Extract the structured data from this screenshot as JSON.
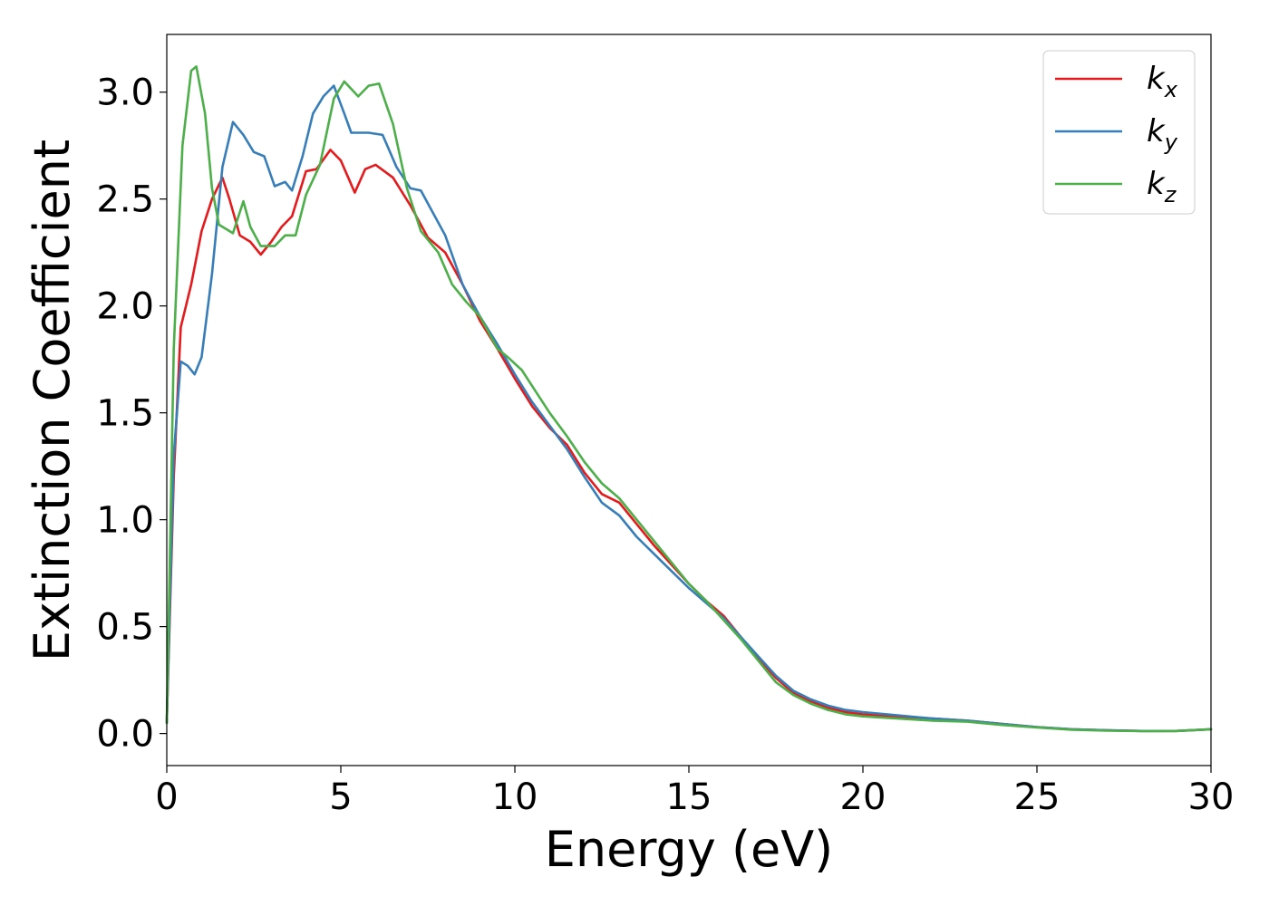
{
  "chart_data": {
    "type": "line",
    "xlabel": "Energy (eV)",
    "ylabel": "Extinction Coefficient",
    "xlim": [
      0,
      30
    ],
    "ylim": [
      -0.15,
      3.27
    ],
    "xticks": [
      "0",
      "5",
      "10",
      "15",
      "20",
      "25",
      "30"
    ],
    "yticks": [
      "0.0",
      "0.5",
      "1.0",
      "1.5",
      "2.0",
      "2.5",
      "3.0"
    ],
    "grid": false,
    "legend_position": "top-right",
    "series": [
      {
        "name": "k_x",
        "label_base": "k",
        "label_sub": "x",
        "color": "#e41a1c",
        "points": [
          [
            0,
            0.05
          ],
          [
            0.2,
            1.2
          ],
          [
            0.4,
            1.9
          ],
          [
            0.7,
            2.1
          ],
          [
            1.0,
            2.35
          ],
          [
            1.3,
            2.5
          ],
          [
            1.6,
            2.6
          ],
          [
            1.8,
            2.5
          ],
          [
            2.1,
            2.33
          ],
          [
            2.4,
            2.3
          ],
          [
            2.7,
            2.24
          ],
          [
            3.0,
            2.3
          ],
          [
            3.3,
            2.37
          ],
          [
            3.6,
            2.42
          ],
          [
            4.0,
            2.63
          ],
          [
            4.3,
            2.64
          ],
          [
            4.7,
            2.73
          ],
          [
            5.0,
            2.68
          ],
          [
            5.4,
            2.53
          ],
          [
            5.7,
            2.64
          ],
          [
            6.0,
            2.66
          ],
          [
            6.5,
            2.6
          ],
          [
            7.0,
            2.47
          ],
          [
            7.5,
            2.32
          ],
          [
            8.0,
            2.25
          ],
          [
            8.5,
            2.1
          ],
          [
            9.0,
            1.93
          ],
          [
            9.5,
            1.8
          ],
          [
            10.0,
            1.66
          ],
          [
            10.5,
            1.53
          ],
          [
            11.0,
            1.43
          ],
          [
            11.5,
            1.35
          ],
          [
            12.0,
            1.22
          ],
          [
            12.5,
            1.12
          ],
          [
            13.0,
            1.08
          ],
          [
            13.5,
            0.98
          ],
          [
            14.0,
            0.88
          ],
          [
            14.5,
            0.79
          ],
          [
            15.0,
            0.7
          ],
          [
            15.5,
            0.62
          ],
          [
            16.0,
            0.55
          ],
          [
            16.5,
            0.45
          ],
          [
            17.0,
            0.35
          ],
          [
            17.5,
            0.26
          ],
          [
            18.0,
            0.19
          ],
          [
            18.5,
            0.15
          ],
          [
            19.0,
            0.12
          ],
          [
            19.5,
            0.1
          ],
          [
            20.0,
            0.09
          ],
          [
            21.0,
            0.08
          ],
          [
            22.0,
            0.07
          ],
          [
            23.0,
            0.06
          ],
          [
            24.0,
            0.045
          ],
          [
            25.0,
            0.03
          ],
          [
            26.0,
            0.02
          ],
          [
            27.0,
            0.015
          ],
          [
            28.0,
            0.012
          ],
          [
            29.0,
            0.012
          ],
          [
            30.0,
            0.02
          ]
        ]
      },
      {
        "name": "k_y",
        "label_base": "k",
        "label_sub": "y",
        "color": "#377eb8",
        "points": [
          [
            0,
            0.05
          ],
          [
            0.2,
            1.3
          ],
          [
            0.4,
            1.74
          ],
          [
            0.6,
            1.72
          ],
          [
            0.8,
            1.68
          ],
          [
            1.0,
            1.76
          ],
          [
            1.3,
            2.15
          ],
          [
            1.6,
            2.65
          ],
          [
            1.9,
            2.86
          ],
          [
            2.2,
            2.8
          ],
          [
            2.5,
            2.72
          ],
          [
            2.8,
            2.7
          ],
          [
            3.1,
            2.56
          ],
          [
            3.4,
            2.58
          ],
          [
            3.6,
            2.54
          ],
          [
            3.9,
            2.7
          ],
          [
            4.2,
            2.9
          ],
          [
            4.5,
            2.98
          ],
          [
            4.8,
            3.03
          ],
          [
            5.1,
            2.9
          ],
          [
            5.3,
            2.81
          ],
          [
            5.8,
            2.81
          ],
          [
            6.2,
            2.8
          ],
          [
            6.6,
            2.65
          ],
          [
            7.0,
            2.55
          ],
          [
            7.3,
            2.54
          ],
          [
            7.6,
            2.45
          ],
          [
            8.0,
            2.33
          ],
          [
            8.5,
            2.1
          ],
          [
            9.0,
            1.95
          ],
          [
            9.5,
            1.82
          ],
          [
            10.0,
            1.68
          ],
          [
            10.5,
            1.55
          ],
          [
            11.0,
            1.44
          ],
          [
            11.5,
            1.33
          ],
          [
            12.0,
            1.2
          ],
          [
            12.5,
            1.08
          ],
          [
            13.0,
            1.02
          ],
          [
            13.5,
            0.92
          ],
          [
            14.0,
            0.84
          ],
          [
            14.5,
            0.76
          ],
          [
            15.0,
            0.68
          ],
          [
            15.5,
            0.61
          ],
          [
            16.0,
            0.54
          ],
          [
            16.5,
            0.45
          ],
          [
            17.0,
            0.36
          ],
          [
            17.5,
            0.27
          ],
          [
            18.0,
            0.2
          ],
          [
            18.5,
            0.16
          ],
          [
            19.0,
            0.13
          ],
          [
            19.5,
            0.11
          ],
          [
            20.0,
            0.1
          ],
          [
            21.0,
            0.085
          ],
          [
            22.0,
            0.07
          ],
          [
            23.0,
            0.06
          ],
          [
            24.0,
            0.045
          ],
          [
            25.0,
            0.03
          ],
          [
            26.0,
            0.02
          ],
          [
            27.0,
            0.015
          ],
          [
            28.0,
            0.012
          ],
          [
            29.0,
            0.012
          ],
          [
            30.0,
            0.02
          ]
        ]
      },
      {
        "name": "k_z",
        "label_base": "k",
        "label_sub": "z",
        "color": "#4daf4a",
        "points": [
          [
            0,
            0.05
          ],
          [
            0.2,
            1.8
          ],
          [
            0.45,
            2.75
          ],
          [
            0.7,
            3.1
          ],
          [
            0.85,
            3.12
          ],
          [
            1.1,
            2.9
          ],
          [
            1.3,
            2.55
          ],
          [
            1.5,
            2.38
          ],
          [
            1.9,
            2.34
          ],
          [
            2.2,
            2.49
          ],
          [
            2.4,
            2.37
          ],
          [
            2.7,
            2.28
          ],
          [
            3.1,
            2.28
          ],
          [
            3.4,
            2.33
          ],
          [
            3.7,
            2.33
          ],
          [
            4.0,
            2.52
          ],
          [
            4.4,
            2.66
          ],
          [
            4.8,
            2.97
          ],
          [
            5.1,
            3.05
          ],
          [
            5.5,
            2.98
          ],
          [
            5.8,
            3.03
          ],
          [
            6.1,
            3.04
          ],
          [
            6.5,
            2.85
          ],
          [
            6.9,
            2.55
          ],
          [
            7.3,
            2.35
          ],
          [
            7.8,
            2.25
          ],
          [
            8.2,
            2.1
          ],
          [
            8.6,
            2.02
          ],
          [
            9.0,
            1.95
          ],
          [
            9.5,
            1.8
          ],
          [
            9.8,
            1.76
          ],
          [
            10.2,
            1.7
          ],
          [
            10.6,
            1.6
          ],
          [
            11.0,
            1.5
          ],
          [
            11.5,
            1.39
          ],
          [
            12.0,
            1.27
          ],
          [
            12.5,
            1.17
          ],
          [
            13.0,
            1.1
          ],
          [
            13.5,
            1.0
          ],
          [
            14.0,
            0.9
          ],
          [
            14.5,
            0.8
          ],
          [
            15.0,
            0.7
          ],
          [
            15.5,
            0.62
          ],
          [
            16.0,
            0.53
          ],
          [
            16.5,
            0.44
          ],
          [
            17.0,
            0.34
          ],
          [
            17.5,
            0.24
          ],
          [
            18.0,
            0.18
          ],
          [
            18.5,
            0.14
          ],
          [
            19.0,
            0.11
          ],
          [
            19.5,
            0.09
          ],
          [
            20.0,
            0.08
          ],
          [
            21.0,
            0.07
          ],
          [
            22.0,
            0.06
          ],
          [
            23.0,
            0.055
          ],
          [
            24.0,
            0.04
          ],
          [
            25.0,
            0.028
          ],
          [
            26.0,
            0.018
          ],
          [
            27.0,
            0.013
          ],
          [
            28.0,
            0.011
          ],
          [
            29.0,
            0.012
          ],
          [
            30.0,
            0.02
          ]
        ]
      }
    ]
  }
}
